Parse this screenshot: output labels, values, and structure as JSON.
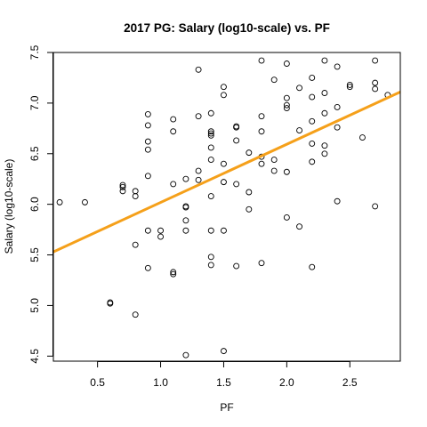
{
  "chart_data": {
    "type": "scatter",
    "title": "2017 PG: Salary (log10-scale) vs. PF",
    "xlabel": "PF",
    "ylabel": "Salary (log10-scale)",
    "xlim": [
      0.15,
      2.9
    ],
    "ylim": [
      4.45,
      7.5
    ],
    "xticks": [
      "0.5",
      "1.0",
      "1.5",
      "2.0",
      "2.5"
    ],
    "yticks": [
      "4.5",
      "5.0",
      "5.5",
      "6.0",
      "6.5",
      "7.0",
      "7.5"
    ],
    "grid": false,
    "point_style": "open-circle",
    "points": [
      [
        0.2,
        6.02
      ],
      [
        0.4,
        6.02
      ],
      [
        0.6,
        5.03
      ],
      [
        0.6,
        5.02
      ],
      [
        0.7,
        6.19
      ],
      [
        0.7,
        6.17
      ],
      [
        0.7,
        6.13
      ],
      [
        0.8,
        6.13
      ],
      [
        0.8,
        6.08
      ],
      [
        0.8,
        5.6
      ],
      [
        0.8,
        4.91
      ],
      [
        0.9,
        6.89
      ],
      [
        0.9,
        6.78
      ],
      [
        0.9,
        6.62
      ],
      [
        0.9,
        6.54
      ],
      [
        0.9,
        6.28
      ],
      [
        0.9,
        5.74
      ],
      [
        0.9,
        5.37
      ],
      [
        1.0,
        5.74
      ],
      [
        1.0,
        5.68
      ],
      [
        1.1,
        6.84
      ],
      [
        1.1,
        6.72
      ],
      [
        1.1,
        6.2
      ],
      [
        1.1,
        5.33
      ],
      [
        1.1,
        5.31
      ],
      [
        1.2,
        6.25
      ],
      [
        1.2,
        5.98
      ],
      [
        1.2,
        5.97
      ],
      [
        1.2,
        5.84
      ],
      [
        1.2,
        5.74
      ],
      [
        1.2,
        4.51
      ],
      [
        1.3,
        7.33
      ],
      [
        1.3,
        6.87
      ],
      [
        1.3,
        6.33
      ],
      [
        1.3,
        6.24
      ],
      [
        1.4,
        6.9
      ],
      [
        1.4,
        6.72
      ],
      [
        1.4,
        6.7
      ],
      [
        1.4,
        6.68
      ],
      [
        1.4,
        6.56
      ],
      [
        1.4,
        6.44
      ],
      [
        1.4,
        6.08
      ],
      [
        1.4,
        5.74
      ],
      [
        1.4,
        5.48
      ],
      [
        1.4,
        5.4
      ],
      [
        1.5,
        7.16
      ],
      [
        1.5,
        7.08
      ],
      [
        1.5,
        6.4
      ],
      [
        1.5,
        6.22
      ],
      [
        1.5,
        5.74
      ],
      [
        1.5,
        4.55
      ],
      [
        1.6,
        6.77
      ],
      [
        1.6,
        6.76
      ],
      [
        1.6,
        6.63
      ],
      [
        1.6,
        6.2
      ],
      [
        1.6,
        5.39
      ],
      [
        1.7,
        6.51
      ],
      [
        1.7,
        6.12
      ],
      [
        1.7,
        5.95
      ],
      [
        1.8,
        7.42
      ],
      [
        1.8,
        6.87
      ],
      [
        1.8,
        6.72
      ],
      [
        1.8,
        6.47
      ],
      [
        1.8,
        6.4
      ],
      [
        1.8,
        5.42
      ],
      [
        1.9,
        7.23
      ],
      [
        1.9,
        6.44
      ],
      [
        1.9,
        6.33
      ],
      [
        2.0,
        7.39
      ],
      [
        2.0,
        7.05
      ],
      [
        2.0,
        6.98
      ],
      [
        2.0,
        6.95
      ],
      [
        2.0,
        6.32
      ],
      [
        2.0,
        5.87
      ],
      [
        2.1,
        7.15
      ],
      [
        2.1,
        6.73
      ],
      [
        2.1,
        5.78
      ],
      [
        2.2,
        7.25
      ],
      [
        2.2,
        7.06
      ],
      [
        2.2,
        6.82
      ],
      [
        2.2,
        6.6
      ],
      [
        2.2,
        6.42
      ],
      [
        2.2,
        5.38
      ],
      [
        2.3,
        7.42
      ],
      [
        2.3,
        7.1
      ],
      [
        2.3,
        6.9
      ],
      [
        2.3,
        6.58
      ],
      [
        2.3,
        6.5
      ],
      [
        2.4,
        7.36
      ],
      [
        2.4,
        6.96
      ],
      [
        2.4,
        6.76
      ],
      [
        2.4,
        6.03
      ],
      [
        2.5,
        7.18
      ],
      [
        2.5,
        7.16
      ],
      [
        2.6,
        6.66
      ],
      [
        2.7,
        7.42
      ],
      [
        2.7,
        7.2
      ],
      [
        2.7,
        7.14
      ],
      [
        2.7,
        5.98
      ],
      [
        2.8,
        7.08
      ]
    ],
    "regression_line": {
      "x": [
        0.15,
        2.9
      ],
      "y": [
        5.53,
        7.11
      ],
      "color": "#f5a01a"
    },
    "point_color": "#000000"
  }
}
